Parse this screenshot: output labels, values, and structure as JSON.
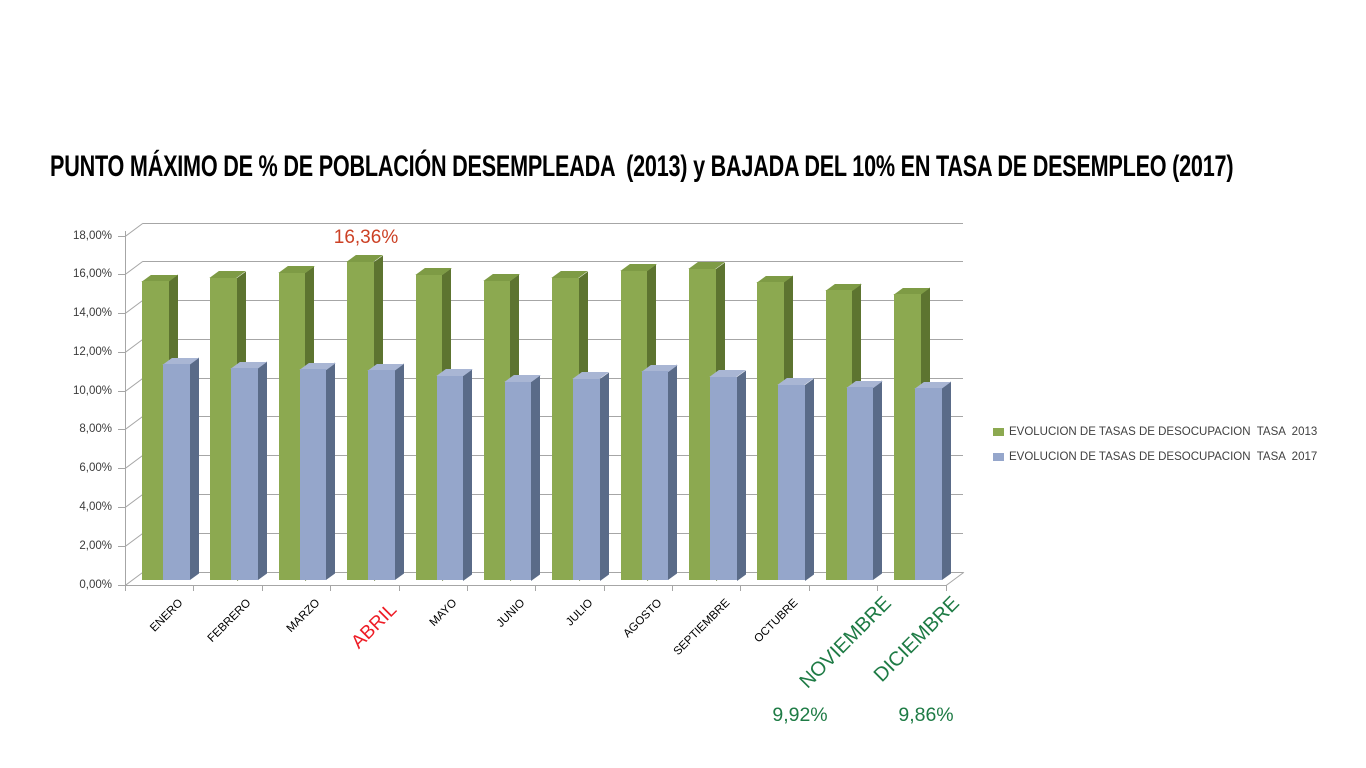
{
  "title": {
    "text": "PUNTO MÁXIMO DE % DE POBLACIÓN DESEMPLEADA  (2013) y BAJADA DEL 10% EN TASA DE DESEMPLEO (2017)"
  },
  "colors": {
    "background": "#ffffff",
    "grid": "#a6a6a6",
    "axis_text": "#3b3b3b",
    "category_text": "#000000",
    "highlight_red": "#ee1c25",
    "highlight_green": "#1e7b45",
    "annotation_red": "#cc4125"
  },
  "chart_data": {
    "type": "bar",
    "style": "3d-clustered-column",
    "title": "PUNTO MÁXIMO DE % DE POBLACIÓN DESEMPLEADA  (2013) y BAJADA DEL 10% EN TASA DE DESEMPLEO (2017)",
    "categories": [
      "ENERO",
      "FEBRERO",
      "MARZO",
      "ABRIL",
      "MAYO",
      "JUNIO",
      "JULIO",
      "AGOSTO",
      "SEPTIEMBRE",
      "OCTUBRE",
      "NOVIEMBRE",
      "DICIEMBRE"
    ],
    "series": [
      {
        "name": "EVOLUCION DE TASAS DE DESOCUPACION  TASA  2013",
        "color_front": "#8ca950",
        "color_side": "#5d7430",
        "color_top": "#7e9b45",
        "values": [
          15.35,
          15.55,
          15.8,
          16.36,
          15.7,
          15.4,
          15.55,
          15.9,
          16.0,
          15.3,
          14.9,
          14.7
        ]
      },
      {
        "name": "EVOLUCION DE TASAS DE DESOCUPACION  TASA  2017",
        "color_front": "#95a6cb",
        "color_side": "#5a6b88",
        "color_top": "#a9b6d4",
        "values": [
          11.1,
          10.9,
          10.85,
          10.8,
          10.5,
          10.2,
          10.35,
          10.75,
          10.45,
          10.05,
          9.92,
          9.86
        ]
      }
    ],
    "ylim": [
      0,
      18
    ],
    "ytick_step": 2,
    "ytick_labels": [
      "0,00%",
      "2,00%",
      "4,00%",
      "6,00%",
      "8,00%",
      "10,00%",
      "12,00%",
      "14,00%",
      "16,00%",
      "18,00%"
    ],
    "grid": true,
    "legend_position": "right",
    "highlighted_categories": [
      {
        "label": "ABRIL",
        "color": "#ee1c25",
        "size": "large"
      },
      {
        "label": "NOVIEMBRE",
        "color": "#1e7b45",
        "size": "large"
      },
      {
        "label": "DICIEMBRE",
        "color": "#1e7b45",
        "size": "large"
      }
    ],
    "annotations": [
      {
        "text": "16,36%",
        "category": "ABRIL",
        "series": "2013",
        "color": "#cc4125",
        "position": "above-bar"
      },
      {
        "text": "9,92%",
        "category": "NOVIEMBRE",
        "series": "2017",
        "color": "#1e7b45",
        "position": "below-axis"
      },
      {
        "text": "9,86%",
        "category": "DICIEMBRE",
        "series": "2017",
        "color": "#1e7b45",
        "position": "below-axis"
      }
    ]
  }
}
